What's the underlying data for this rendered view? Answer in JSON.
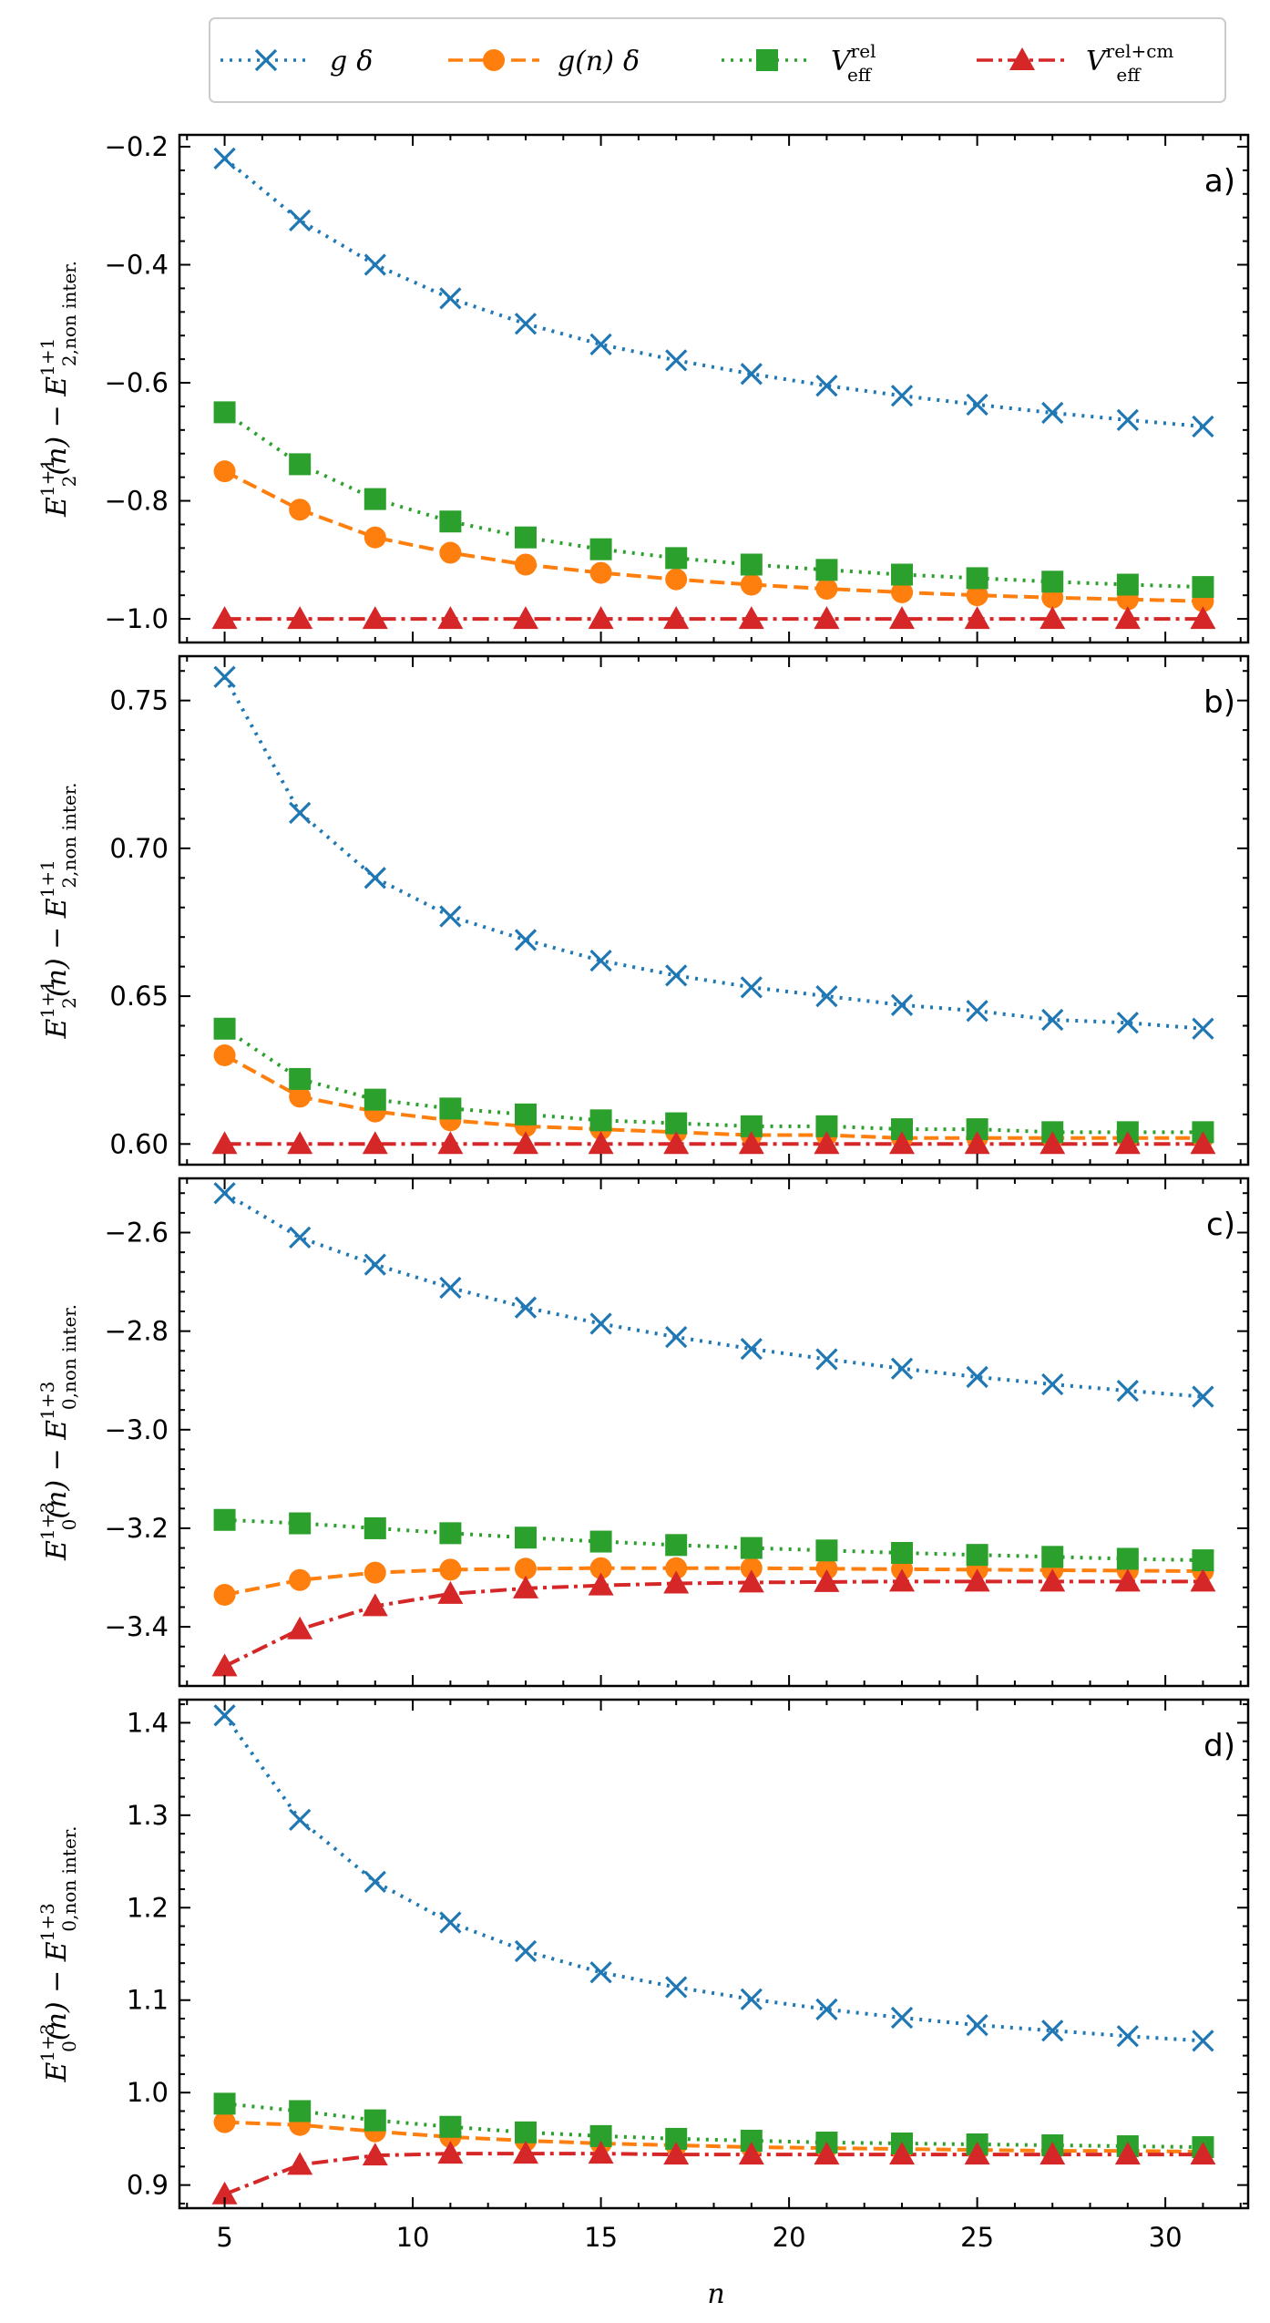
{
  "legend": [
    {
      "id": "gdelta",
      "math": "g",
      "math2": "δ"
    },
    {
      "id": "gndelta",
      "math": "g(n)",
      "math2": "δ"
    },
    {
      "id": "veffrel",
      "math": "V",
      "sub": "eff",
      "sup": "rel"
    },
    {
      "id": "veffrelcm",
      "math": "V",
      "sub": "eff",
      "sup": "rel+cm"
    }
  ],
  "x_axis_label": "n",
  "colors": {
    "gdelta": "#1f77b4",
    "gndelta": "#ff7f0e",
    "veffrel": "#2ca02c",
    "veffrelcm": "#d62728"
  },
  "chart_data": [
    {
      "type": "line",
      "panel": "a)",
      "ylabel": {
        "base": "E",
        "sub": "2",
        "sup": "1+1",
        "mid": "(n) − ",
        "base2": "E",
        "sub2": "2,non inter.",
        "sup2": "1+1"
      },
      "x": [
        5,
        7,
        9,
        11,
        13,
        15,
        17,
        19,
        21,
        23,
        25,
        27,
        29,
        31
      ],
      "xlim": [
        3.8,
        32.2
      ],
      "xticks": [
        5,
        10,
        15,
        20,
        25,
        30
      ],
      "ylim": [
        -1.04,
        -0.18
      ],
      "yticks": [
        -0.2,
        -0.4,
        -0.6,
        -0.8,
        -1.0
      ],
      "ytick_labels": [
        "−0.2",
        "−0.4",
        "−0.6",
        "−0.8",
        "−1.0"
      ],
      "series": [
        {
          "name": "gdelta",
          "values": [
            -0.22,
            -0.325,
            -0.4,
            -0.457,
            -0.5,
            -0.535,
            -0.562,
            -0.585,
            -0.605,
            -0.622,
            -0.637,
            -0.651,
            -0.663,
            -0.674
          ]
        },
        {
          "name": "gndelta",
          "values": [
            -0.75,
            -0.815,
            -0.862,
            -0.888,
            -0.908,
            -0.922,
            -0.933,
            -0.942,
            -0.949,
            -0.955,
            -0.96,
            -0.964,
            -0.967,
            -0.97
          ]
        },
        {
          "name": "veffrel",
          "values": [
            -0.65,
            -0.738,
            -0.797,
            -0.835,
            -0.862,
            -0.882,
            -0.897,
            -0.908,
            -0.917,
            -0.925,
            -0.931,
            -0.937,
            -0.942,
            -0.946
          ]
        },
        {
          "name": "veffrelcm",
          "values": [
            -1.0,
            -1.0,
            -1.0,
            -1.0,
            -1.0,
            -1.0,
            -1.0,
            -1.0,
            -1.0,
            -1.0,
            -1.0,
            -1.0,
            -1.0,
            -1.0
          ]
        }
      ]
    },
    {
      "type": "line",
      "panel": "b)",
      "ylabel": {
        "base": "E",
        "sub": "2",
        "sup": "1+1",
        "mid": "(n) − ",
        "base2": "E",
        "sub2": "2,non inter.",
        "sup2": "1+1"
      },
      "x": [
        5,
        7,
        9,
        11,
        13,
        15,
        17,
        19,
        21,
        23,
        25,
        27,
        29,
        31
      ],
      "xlim": [
        3.8,
        32.2
      ],
      "xticks": [
        5,
        10,
        15,
        20,
        25,
        30
      ],
      "ylim": [
        0.593,
        0.765
      ],
      "yticks": [
        0.75,
        0.7,
        0.65,
        0.6
      ],
      "ytick_labels": [
        "0.75",
        "0.70",
        "0.65",
        "0.60"
      ],
      "series": [
        {
          "name": "gdelta",
          "values": [
            0.758,
            0.712,
            0.69,
            0.677,
            0.669,
            0.662,
            0.657,
            0.653,
            0.65,
            0.647,
            0.645,
            0.642,
            0.641,
            0.639
          ]
        },
        {
          "name": "gndelta",
          "values": [
            0.63,
            0.616,
            0.611,
            0.608,
            0.606,
            0.605,
            0.604,
            0.603,
            0.603,
            0.602,
            0.602,
            0.602,
            0.602,
            0.602
          ]
        },
        {
          "name": "veffrel",
          "values": [
            0.639,
            0.622,
            0.615,
            0.612,
            0.61,
            0.608,
            0.607,
            0.606,
            0.606,
            0.605,
            0.605,
            0.604,
            0.604,
            0.604
          ]
        },
        {
          "name": "veffrelcm",
          "values": [
            0.6,
            0.6,
            0.6,
            0.6,
            0.6,
            0.6,
            0.6,
            0.6,
            0.6,
            0.6,
            0.6,
            0.6,
            0.6,
            0.6
          ]
        }
      ]
    },
    {
      "type": "line",
      "panel": "c)",
      "ylabel": {
        "base": "E",
        "sub": "0",
        "sup": "1+3",
        "mid": "(n) − ",
        "base2": "E",
        "sub2": "0,non inter.",
        "sup2": "1+3"
      },
      "x": [
        5,
        7,
        9,
        11,
        13,
        15,
        17,
        19,
        21,
        23,
        25,
        27,
        29,
        31
      ],
      "xlim": [
        3.8,
        32.2
      ],
      "xticks": [
        5,
        10,
        15,
        20,
        25,
        30
      ],
      "ylim": [
        -3.52,
        -2.49
      ],
      "yticks": [
        -2.6,
        -2.8,
        -3.0,
        -3.2,
        -3.4
      ],
      "ytick_labels": [
        "−2.6",
        "−2.8",
        "−3.0",
        "−3.2",
        "−3.4"
      ],
      "series": [
        {
          "name": "gdelta",
          "values": [
            -2.52,
            -2.61,
            -2.665,
            -2.712,
            -2.752,
            -2.785,
            -2.812,
            -2.836,
            -2.857,
            -2.876,
            -2.893,
            -2.908,
            -2.921,
            -2.933
          ]
        },
        {
          "name": "gndelta",
          "values": [
            -3.335,
            -3.305,
            -3.29,
            -3.284,
            -3.282,
            -3.281,
            -3.281,
            -3.281,
            -3.282,
            -3.283,
            -3.284,
            -3.285,
            -3.286,
            -3.287
          ]
        },
        {
          "name": "veffrel",
          "values": [
            -3.183,
            -3.19,
            -3.2,
            -3.21,
            -3.219,
            -3.227,
            -3.234,
            -3.24,
            -3.245,
            -3.25,
            -3.254,
            -3.258,
            -3.262,
            -3.265
          ]
        },
        {
          "name": "veffrelcm",
          "values": [
            -3.48,
            -3.405,
            -3.358,
            -3.333,
            -3.322,
            -3.316,
            -3.312,
            -3.31,
            -3.309,
            -3.308,
            -3.308,
            -3.308,
            -3.308,
            -3.308
          ]
        }
      ]
    },
    {
      "type": "line",
      "panel": "d)",
      "ylabel": {
        "base": "E",
        "sub": "0",
        "sup": "1+3",
        "mid": "(n) − ",
        "base2": "E",
        "sub2": "0,non inter.",
        "sup2": "1+3"
      },
      "x": [
        5,
        7,
        9,
        11,
        13,
        15,
        17,
        19,
        21,
        23,
        25,
        27,
        29,
        31
      ],
      "xlim": [
        3.8,
        32.2
      ],
      "xticks": [
        5,
        10,
        15,
        20,
        25,
        30
      ],
      "ylim": [
        0.875,
        1.425
      ],
      "yticks": [
        1.4,
        1.3,
        1.2,
        1.1,
        1.0,
        0.9
      ],
      "ytick_labels": [
        "1.4",
        "1.3",
        "1.2",
        "1.1",
        "1.0",
        "0.9"
      ],
      "series": [
        {
          "name": "gdelta",
          "values": [
            1.408,
            1.295,
            1.228,
            1.184,
            1.153,
            1.13,
            1.114,
            1.101,
            1.09,
            1.081,
            1.073,
            1.067,
            1.061,
            1.056
          ]
        },
        {
          "name": "gndelta",
          "values": [
            0.968,
            0.965,
            0.958,
            0.952,
            0.948,
            0.945,
            0.943,
            0.941,
            0.94,
            0.939,
            0.938,
            0.937,
            0.937,
            0.936
          ]
        },
        {
          "name": "veffrel",
          "values": [
            0.988,
            0.98,
            0.97,
            0.963,
            0.957,
            0.953,
            0.95,
            0.948,
            0.946,
            0.945,
            0.944,
            0.943,
            0.942,
            0.941
          ]
        },
        {
          "name": "veffrelcm",
          "values": [
            0.89,
            0.922,
            0.932,
            0.934,
            0.934,
            0.934,
            0.933,
            0.933,
            0.933,
            0.933,
            0.933,
            0.933,
            0.933,
            0.933
          ]
        }
      ]
    }
  ]
}
